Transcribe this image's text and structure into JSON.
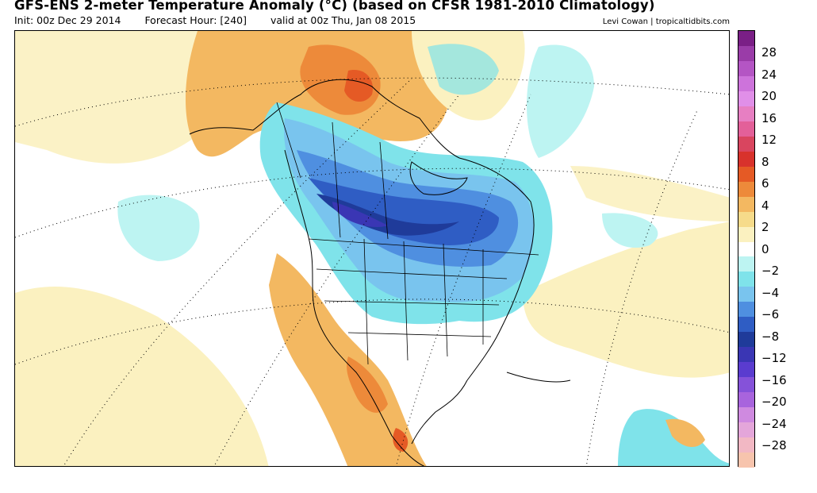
{
  "header": {
    "title": "GFS-ENS 2-meter Temperature Anomaly (°C) (based on CFSR 1981-2010 Climatology)",
    "init": "Init: 00z Dec 29 2014",
    "forecast_hour": "Forecast Hour: [240]",
    "valid": "valid at 00z Thu, Jan 08 2015",
    "credit": "Levi Cowan | tropicaltidbits.com"
  },
  "colorbar": {
    "segments": [
      {
        "color": "#7a1f86"
      },
      {
        "color": "#9a3ca8"
      },
      {
        "color": "#b455c4"
      },
      {
        "color": "#cd73db"
      },
      {
        "color": "#e08fe8"
      },
      {
        "color": "#e77fc2"
      },
      {
        "color": "#e36099"
      },
      {
        "color": "#d9455f"
      },
      {
        "color": "#d8322c"
      },
      {
        "color": "#e55a25"
      },
      {
        "color": "#ed8a3a"
      },
      {
        "color": "#f3b861"
      },
      {
        "color": "#f6db8a"
      },
      {
        "color": "#fbf1c0"
      },
      {
        "color": "#ffffff"
      },
      {
        "color": "#bdf4f2"
      },
      {
        "color": "#7fe3ea"
      },
      {
        "color": "#79c4ee"
      },
      {
        "color": "#4f8fe0"
      },
      {
        "color": "#2f5dc4"
      },
      {
        "color": "#1f3b9a"
      },
      {
        "color": "#3a36b4"
      },
      {
        "color": "#5a3ccf"
      },
      {
        "color": "#8552d9"
      },
      {
        "color": "#a864dd"
      },
      {
        "color": "#cf8ae0"
      },
      {
        "color": "#e4a6da"
      },
      {
        "color": "#f2b8c4"
      },
      {
        "color": "#f7c4ad"
      }
    ],
    "labels": [
      "28",
      "24",
      "20",
      "16",
      "12",
      "8",
      "6",
      "4",
      "2",
      "0",
      "−2",
      "−4",
      "−6",
      "−8",
      "−12",
      "−16",
      "−20",
      "−24",
      "−28"
    ]
  },
  "map": {
    "field": "2-meter temperature anomaly",
    "units": "°C",
    "pattern": [
      {
        "region": "Alaska / Yukon / Arctic",
        "anomaly": "warm (+2 to +8)"
      },
      {
        "region": "Canadian Prairies / central Canada",
        "anomaly": "very cold (-8 to -16)"
      },
      {
        "region": "Great Lakes / Northeast US",
        "anomaly": "cold (-2 to -8)"
      },
      {
        "region": "Southwest US / Mexico",
        "anomaly": "warm (+2 to +6)"
      },
      {
        "region": "Greenland interior",
        "anomaly": "warm (+2 to +4)"
      },
      {
        "region": "Labrador Sea / North Atlantic",
        "anomaly": "slightly cold (-2)"
      }
    ]
  }
}
